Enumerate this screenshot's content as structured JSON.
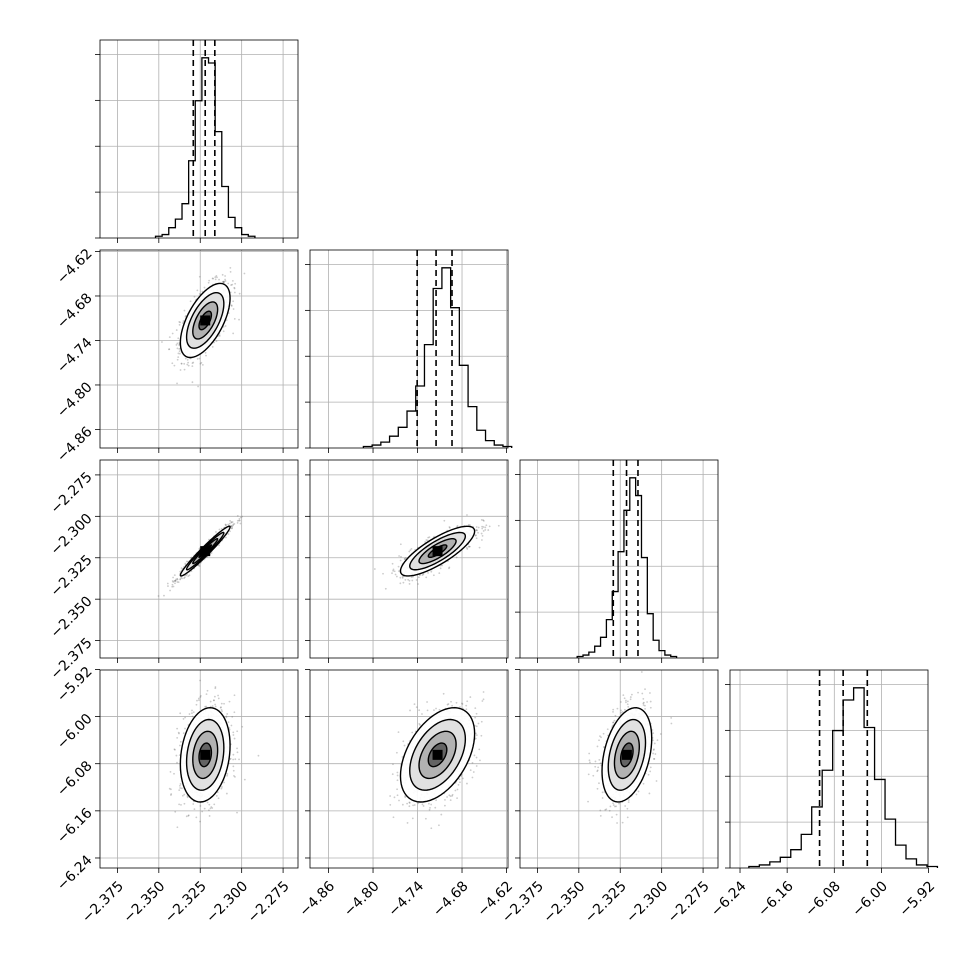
{
  "chart_data": {
    "type": "corner",
    "parameters": [
      {
        "index": 0,
        "mean": -2.322,
        "std": 0.0075,
        "range": [
          -2.3855,
          -2.266
        ],
        "quantiles": [
          -2.3292,
          -2.322,
          -2.3162
        ],
        "ticks": [
          -2.375,
          -2.35,
          -2.325,
          -2.3,
          -2.275
        ],
        "tick_labels": [
          "−2.375",
          "−2.350",
          "−2.325",
          "−2.300",
          "−2.275"
        ],
        "hist_counts": [
          1,
          2,
          6,
          11,
          20,
          45,
          80,
          105,
          102,
          62,
          30,
          12,
          6,
          2,
          1
        ]
      },
      {
        "index": 1,
        "mean": -4.713,
        "std": 0.025,
        "range": [
          -4.885,
          -4.618
        ],
        "quantiles": [
          -4.7405,
          -4.715,
          -4.6935
        ],
        "ticks": [
          -4.86,
          -4.8,
          -4.74,
          -4.68,
          -4.62
        ],
        "tick_labels": [
          "−4.86",
          "−4.80",
          "−4.74",
          "−4.68",
          "−4.62"
        ],
        "hist_counts": [
          1,
          2,
          4,
          8,
          14,
          25,
          42,
          70,
          108,
          122,
          95,
          56,
          28,
          12,
          5,
          2,
          1
        ]
      },
      {
        "index": 2,
        "mean": -2.321,
        "std": 0.0075,
        "range": [
          -2.3855,
          -2.266
        ],
        "quantiles": [
          -2.3292,
          -2.3212,
          -2.3143
        ],
        "ticks": [
          -2.375,
          -2.35,
          -2.325,
          -2.3,
          -2.275
        ],
        "tick_labels": [
          "−2.375",
          "−2.350",
          "−2.325",
          "−2.300",
          "−2.275"
        ],
        "hist_counts": [
          1,
          2,
          4,
          8,
          14,
          26,
          45,
          72,
          100,
          122,
          110,
          68,
          30,
          12,
          5,
          2,
          1
        ]
      },
      {
        "index": 3,
        "mean": -6.065,
        "std": 0.04,
        "range": [
          -6.257,
          -5.921
        ],
        "quantiles": [
          -6.105,
          -6.065,
          -6.024
        ],
        "ticks": [
          -6.24,
          -6.16,
          -6.08,
          -6.0,
          -5.92
        ],
        "tick_labels": [
          "−6.24",
          "−6.16",
          "−6.08",
          "−6.00",
          "−5.92"
        ],
        "hist_counts": [
          1,
          2,
          4,
          7,
          12,
          22,
          40,
          64,
          90,
          110,
          118,
          92,
          58,
          32,
          15,
          6,
          2,
          1
        ]
      }
    ],
    "pairs": [
      {
        "row": 1,
        "col": 0,
        "correlation": 0.6,
        "contour_levels_sigma": [
          0.5,
          1.0,
          1.5,
          2.0
        ]
      },
      {
        "row": 2,
        "col": 0,
        "correlation": 0.97,
        "contour_levels_sigma": [
          0.5,
          1.0,
          1.5,
          2.0
        ]
      },
      {
        "row": 2,
        "col": 1,
        "correlation": 0.8,
        "contour_levels_sigma": [
          0.5,
          1.0,
          1.5,
          2.0
        ]
      },
      {
        "row": 3,
        "col": 0,
        "correlation": 0.2,
        "contour_levels_sigma": [
          0.5,
          1.0,
          1.5,
          2.0
        ]
      },
      {
        "row": 3,
        "col": 1,
        "correlation": 0.45,
        "contour_levels_sigma": [
          0.5,
          1.0,
          1.5,
          2.0
        ]
      },
      {
        "row": 3,
        "col": 2,
        "correlation": 0.35,
        "contour_levels_sigma": [
          0.5,
          1.0,
          1.5,
          2.0
        ]
      }
    ],
    "grid": true,
    "title": "",
    "xlabel": "",
    "ylabel": ""
  }
}
